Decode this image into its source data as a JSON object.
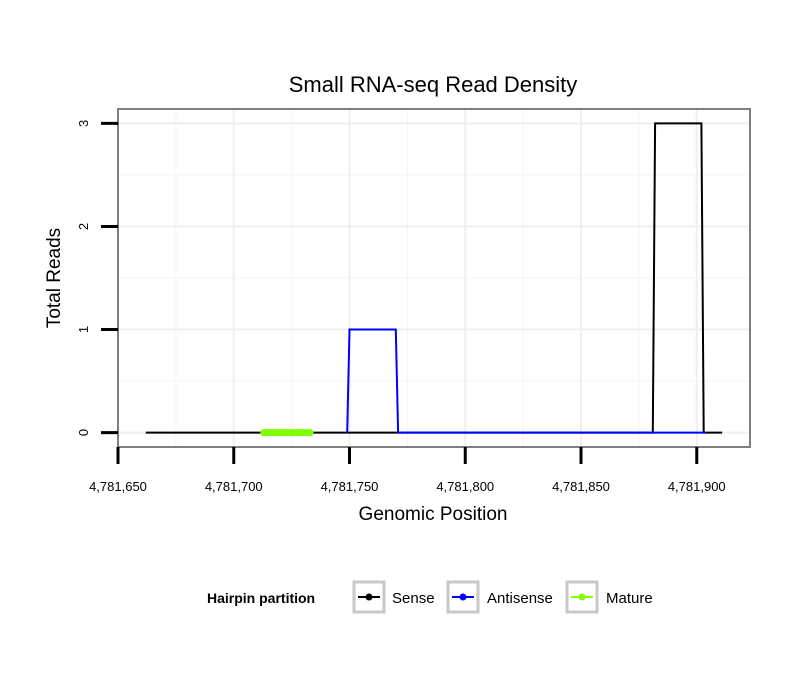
{
  "chart_data": {
    "type": "line",
    "title": "Small RNA-seq Read Density",
    "xlabel": "Genomic Position",
    "ylabel": "Total Reads",
    "xlim": [
      4781650,
      4781923
    ],
    "ylim": [
      -0.14,
      3.14
    ],
    "x_ticks": [
      {
        "value": 4781650,
        "label": "4,781,650"
      },
      {
        "value": 4781700,
        "label": "4,781,700"
      },
      {
        "value": 4781750,
        "label": "4,781,750"
      },
      {
        "value": 4781800,
        "label": "4,781,800"
      },
      {
        "value": 4781850,
        "label": "4,781,850"
      },
      {
        "value": 4781900,
        "label": "4,781,900"
      }
    ],
    "y_ticks": [
      {
        "value": 0,
        "label": "0"
      },
      {
        "value": 1,
        "label": "1"
      },
      {
        "value": 2,
        "label": "2"
      },
      {
        "value": 3,
        "label": "3"
      }
    ],
    "grid": true,
    "series": [
      {
        "name": "Sense",
        "color": "#000000",
        "x": [
          4781662,
          4781881,
          4781882,
          4781902,
          4781903,
          4781911
        ],
        "y": [
          0,
          0,
          3,
          3,
          0,
          0
        ]
      },
      {
        "name": "Antisense",
        "color": "#0000ff",
        "x": [
          4781749,
          4781750,
          4781770,
          4781771,
          4781881,
          4781904
        ],
        "y": [
          0,
          1,
          1,
          0,
          0,
          0
        ]
      },
      {
        "name": "Mature",
        "color": "#7fff00",
        "x": [
          4781713,
          4781733
        ],
        "y": [
          0,
          0
        ]
      }
    ],
    "legend": {
      "title": "Hairpin partition",
      "position": "bottom",
      "items": [
        "Sense",
        "Antisense",
        "Mature"
      ]
    }
  }
}
